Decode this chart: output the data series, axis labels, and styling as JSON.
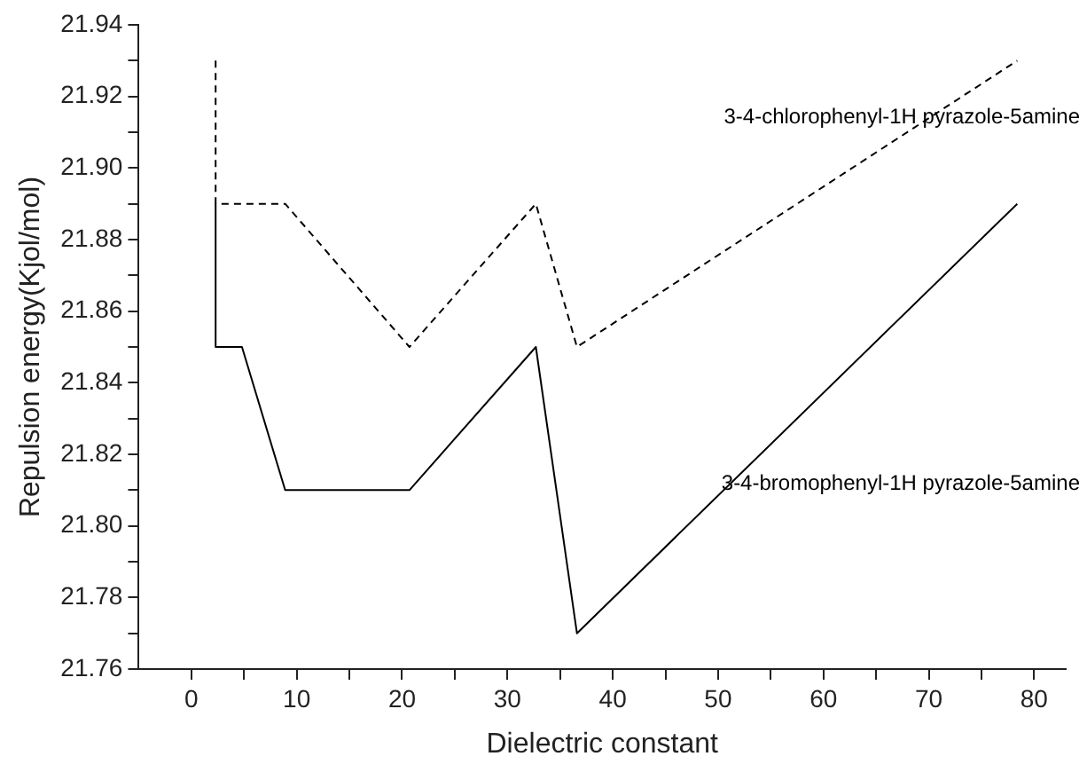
{
  "chart_data": {
    "type": "line",
    "xlabel": "Dielectric constant",
    "ylabel": "Repulsion energy(Kjol/mol)",
    "xlim": [
      -5,
      83
    ],
    "xticks": [
      0,
      {
        "value": 5,
        "label": null
      },
      10,
      {
        "value": 15,
        "label": null
      },
      20,
      {
        "value": 25,
        "label": null
      },
      30,
      {
        "value": 35,
        "label": null
      },
      40,
      {
        "value": 45,
        "label": null
      },
      50,
      {
        "value": 55,
        "label": null
      },
      60,
      {
        "value": 65,
        "label": null
      },
      70,
      {
        "value": 75,
        "label": null
      },
      80
    ],
    "ylim": [
      21.76,
      21.94
    ],
    "yticks": [
      {
        "value": 21.76,
        "label": "21.76"
      },
      {
        "value": 21.77,
        "label": null
      },
      {
        "value": 21.78,
        "label": "21.78"
      },
      {
        "value": 21.79,
        "label": null
      },
      {
        "value": 21.8,
        "label": "21.80"
      },
      {
        "value": 21.81,
        "label": null
      },
      {
        "value": 21.82,
        "label": "21.82"
      },
      {
        "value": 21.83,
        "label": null
      },
      {
        "value": 21.84,
        "label": "21.84"
      },
      {
        "value": 21.85,
        "label": null
      },
      {
        "value": 21.86,
        "label": "21.86"
      },
      {
        "value": 21.87,
        "label": null
      },
      {
        "value": 21.88,
        "label": "21.88"
      },
      {
        "value": 21.89,
        "label": null
      },
      {
        "value": 21.9,
        "label": "21.90"
      },
      {
        "value": 21.91,
        "label": null
      },
      {
        "value": 21.92,
        "label": "21.92"
      },
      {
        "value": 21.93,
        "label": null
      },
      {
        "value": 21.94,
        "label": "21.94"
      }
    ],
    "grid": false,
    "legend": false,
    "marker": "none",
    "series": [
      {
        "name": "3-4-chlorophenyl-1H pyrazole-5amine",
        "color": "#000000",
        "line_style": "dashed",
        "x": [
          2.3,
          2.3,
          4.8,
          8.9,
          20.7,
          32.7,
          36.6,
          78.4
        ],
        "values": [
          21.93,
          21.89,
          21.89,
          21.89,
          21.85,
          21.89,
          21.85,
          21.93
        ]
      },
      {
        "name": "3-4-bromophenyl-1H pyrazole-5amine",
        "color": "#000000",
        "line_style": "solid",
        "x": [
          2.3,
          2.3,
          4.8,
          8.9,
          20.7,
          32.7,
          36.6,
          78.4
        ],
        "values": [
          21.89,
          21.85,
          21.85,
          21.81,
          21.81,
          21.85,
          21.77,
          21.89
        ]
      }
    ]
  }
}
